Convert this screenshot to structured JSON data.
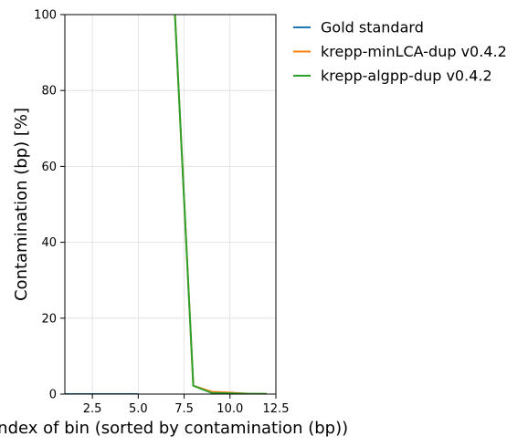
{
  "chart_data": {
    "type": "line",
    "xlabel": "Index of bin (sorted by contamination (bp))",
    "ylabel": "Contamination (bp) [%]",
    "xlim": [
      1,
      12.5
    ],
    "ylim": [
      0,
      100
    ],
    "x_ticks": [
      2.5,
      5.0,
      7.5,
      10.0,
      12.5
    ],
    "x_tick_labels": [
      "2.5",
      "5.0",
      "7.5",
      "10.0",
      "12.5"
    ],
    "y_ticks": [
      0,
      20,
      40,
      60,
      80,
      100
    ],
    "y_tick_labels": [
      "0",
      "20",
      "40",
      "60",
      "80",
      "100"
    ],
    "grid": true,
    "legend_position": "outside-right",
    "series": [
      {
        "name": "Gold standard",
        "color": "#1f77b4",
        "x": [
          1,
          2,
          3,
          4,
          5
        ],
        "y": [
          0,
          0,
          0,
          0,
          0
        ]
      },
      {
        "name": "krepp-minLCA-dup v0.4.2",
        "color": "#ff7f0e",
        "x": [
          7,
          8,
          9,
          10,
          11,
          12
        ],
        "y": [
          100,
          2.2,
          0.6,
          0.4,
          0.1,
          0.05
        ]
      },
      {
        "name": "krepp-algpp-dup v0.4.2",
        "color": "#2ca02c",
        "x": [
          7,
          8,
          9,
          10,
          11,
          12
        ],
        "y": [
          100,
          2.2,
          0.3,
          0.2,
          0.1,
          0.05
        ]
      }
    ]
  }
}
